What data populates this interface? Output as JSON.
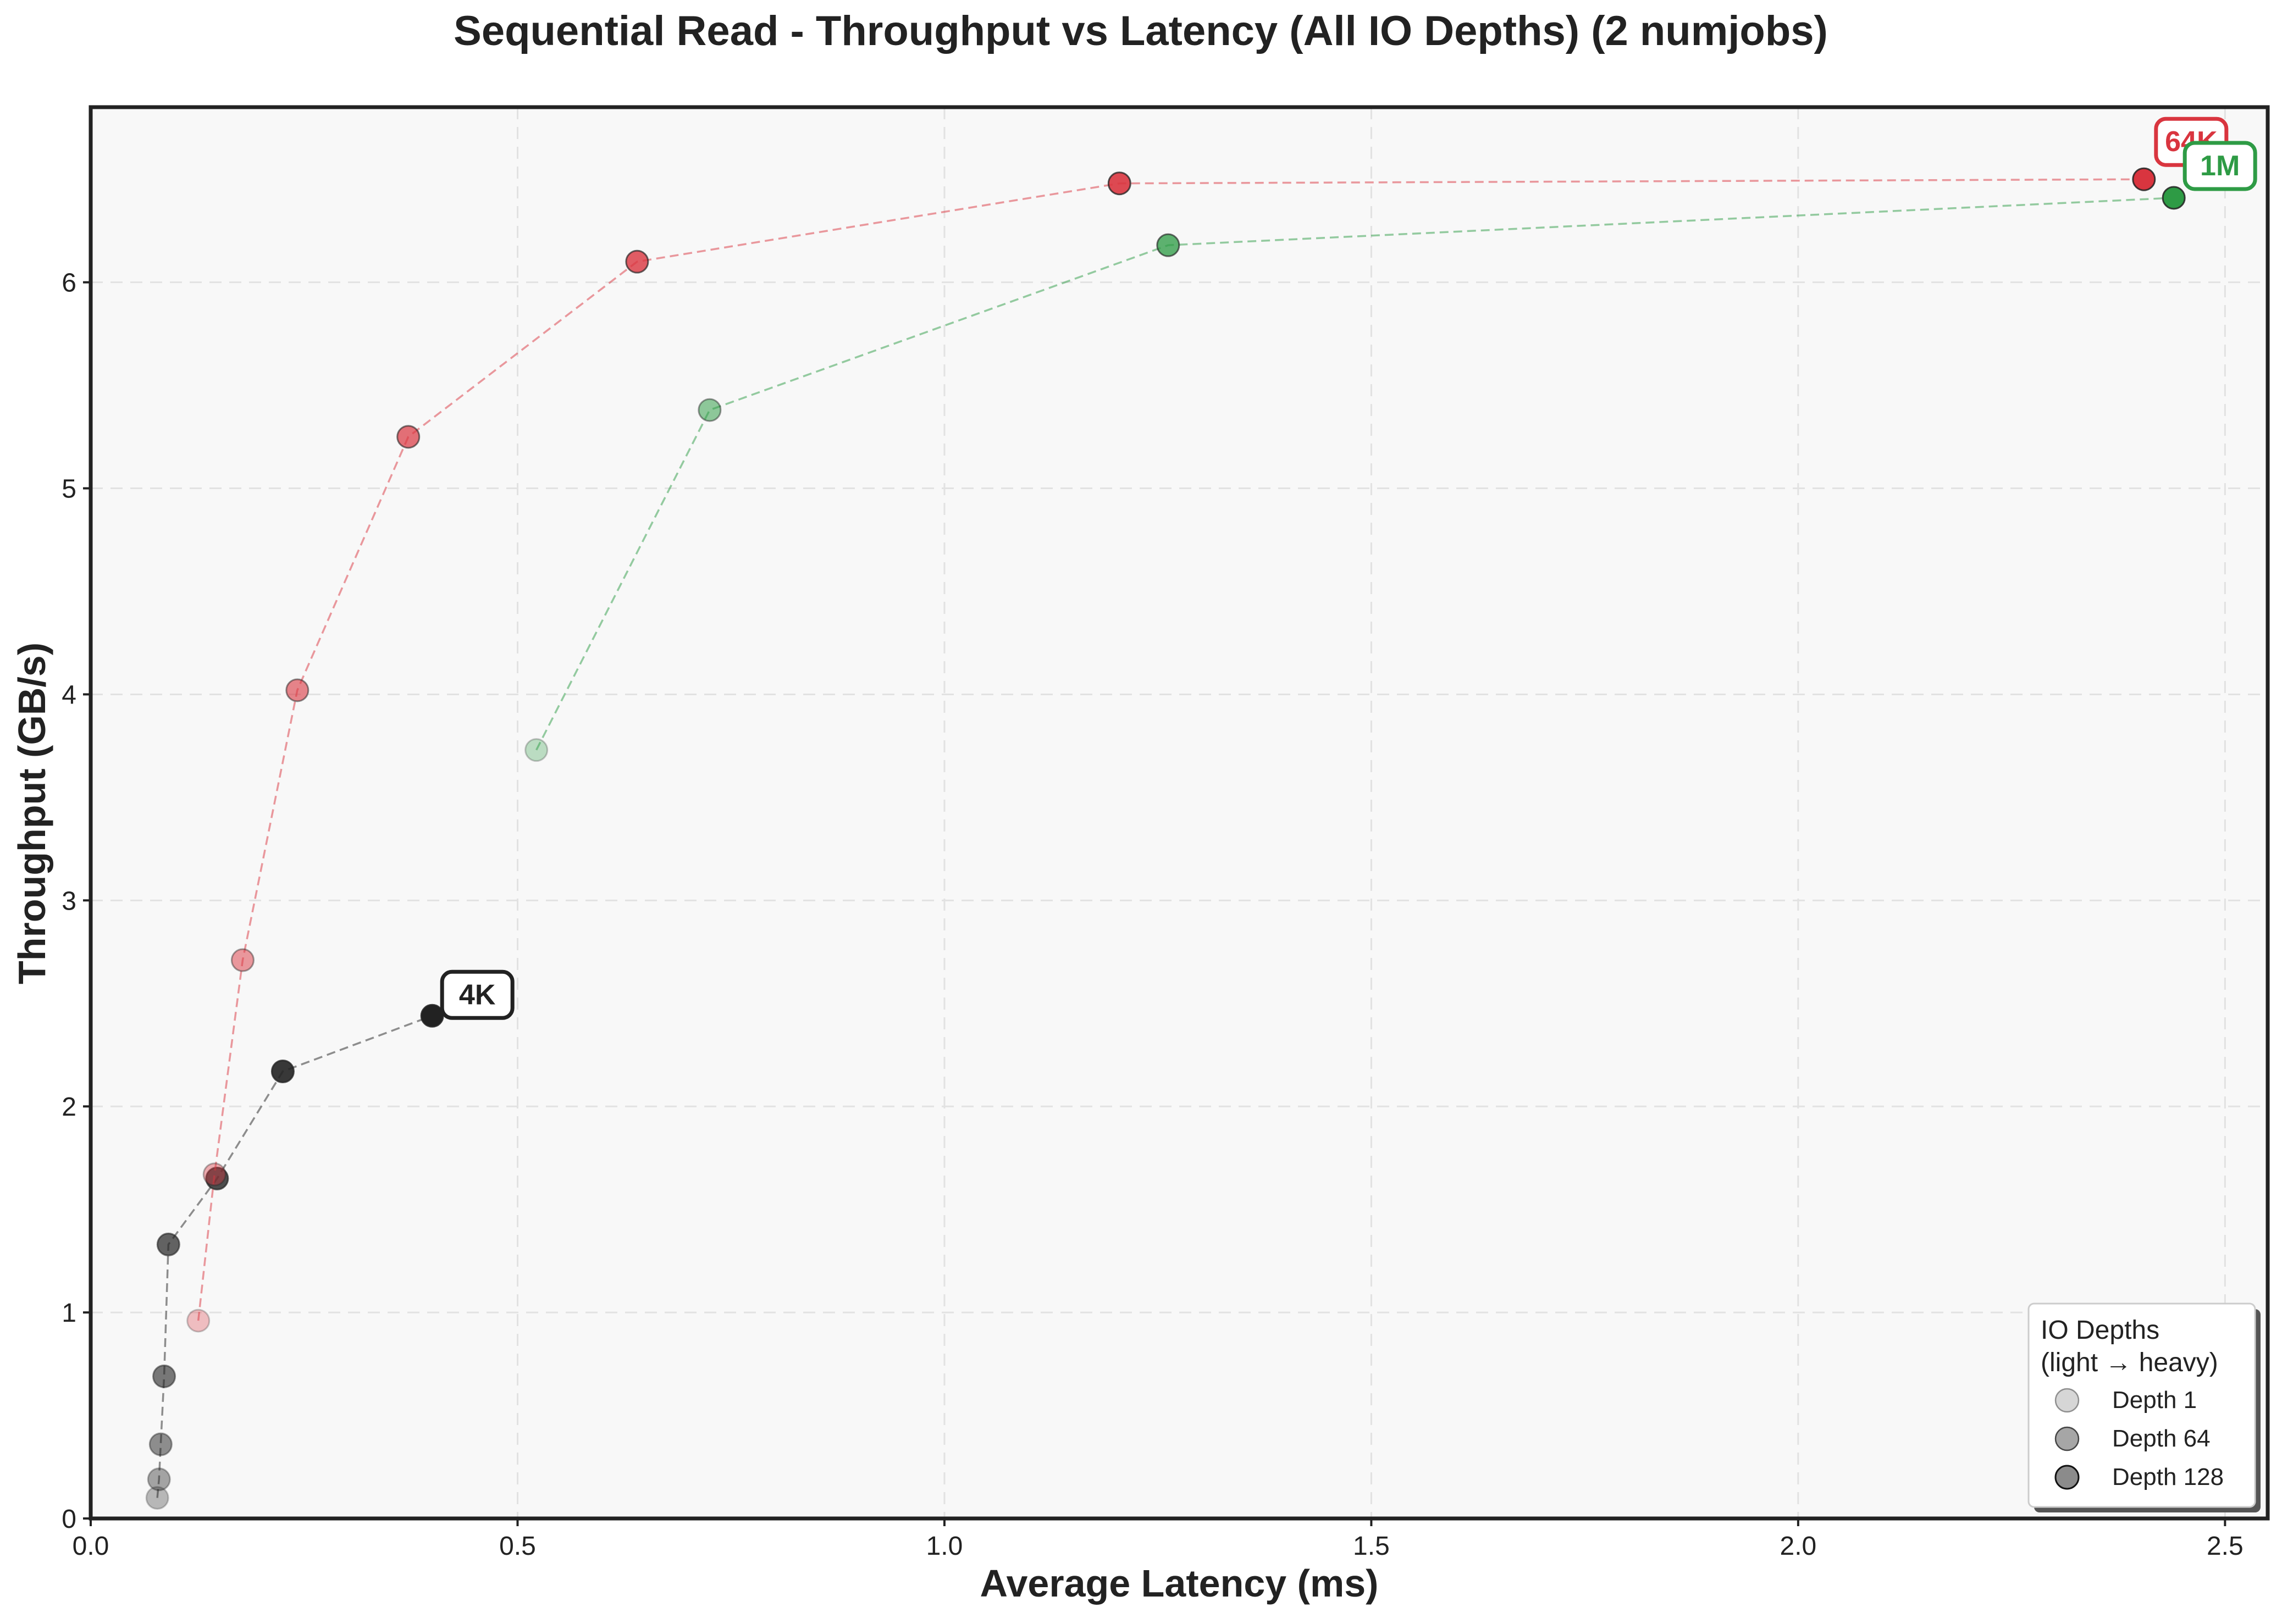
{
  "chart_data": {
    "type": "scatter",
    "title": "Sequential Read - Throughput vs Latency (All IO Depths) (2 numjobs)",
    "xlabel": "Average Latency (ms)",
    "ylabel": "Throughput (GB/s)",
    "xlim": [
      0,
      2.55
    ],
    "ylim": [
      0,
      6.85
    ],
    "xticks": [
      "0.0",
      "0.5",
      "1.0",
      "1.5",
      "2.0",
      "2.5"
    ],
    "yticks": [
      "0",
      "1",
      "2",
      "3",
      "4",
      "5",
      "6"
    ],
    "grid": true,
    "connect_series": "dashed",
    "series": [
      {
        "name": "4K",
        "color": "#222222",
        "points": [
          {
            "x": 0.078,
            "y": 0.1
          },
          {
            "x": 0.08,
            "y": 0.19
          },
          {
            "x": 0.082,
            "y": 0.36
          },
          {
            "x": 0.086,
            "y": 0.69
          },
          {
            "x": 0.091,
            "y": 1.33
          },
          {
            "x": 0.148,
            "y": 1.65
          },
          {
            "x": 0.225,
            "y": 2.17
          },
          {
            "x": 0.4,
            "y": 2.44
          }
        ]
      },
      {
        "name": "64K",
        "color": "#d9353f",
        "points": [
          {
            "x": 0.126,
            "y": 0.96
          },
          {
            "x": 0.145,
            "y": 1.67
          },
          {
            "x": 0.178,
            "y": 2.71
          },
          {
            "x": 0.242,
            "y": 4.02
          },
          {
            "x": 0.372,
            "y": 5.25
          },
          {
            "x": 0.64,
            "y": 6.1
          },
          {
            "x": 1.205,
            "y": 6.48
          },
          {
            "x": 2.405,
            "y": 6.5
          }
        ]
      },
      {
        "name": "1M",
        "color": "#2e9b45",
        "points": [
          {
            "x": 0.522,
            "y": 3.73
          },
          {
            "x": 0.725,
            "y": 5.38
          },
          {
            "x": 1.262,
            "y": 6.18
          },
          {
            "x": 2.44,
            "y": 6.41
          }
        ]
      }
    ],
    "legend": {
      "title_line1": "IO Depths",
      "title_line2": "(light → heavy)",
      "placement": "lower-right",
      "entries": [
        "Depth 1",
        "Depth 64",
        "Depth 128"
      ]
    }
  }
}
